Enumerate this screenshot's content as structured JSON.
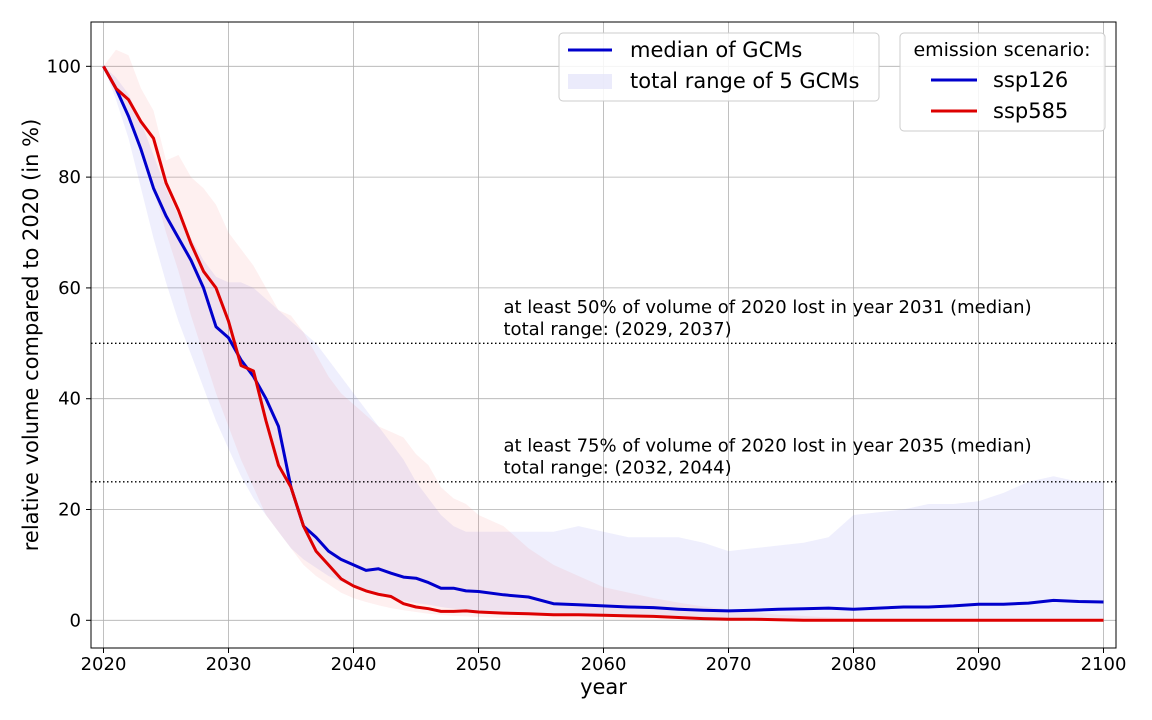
{
  "chart_data": {
    "type": "line",
    "xlabel": "year",
    "ylabel": "relative volume compared to 2020 (in %)",
    "xlim": [
      2019,
      2101
    ],
    "ylim": [
      -5,
      108
    ],
    "xticks": [
      2020,
      2030,
      2040,
      2050,
      2060,
      2070,
      2080,
      2090,
      2100
    ],
    "yticks": [
      0,
      20,
      40,
      60,
      80,
      100
    ],
    "grid": true,
    "legend_left": {
      "placement": "top-center",
      "entries": [
        {
          "label": "median of GCMs",
          "kind": "line",
          "color": "#0000cc"
        },
        {
          "label": "total range of 5 GCMs",
          "kind": "band",
          "color": "#e6e6fa"
        }
      ]
    },
    "legend_right": {
      "placement": "top-right",
      "title": "emission scenario:",
      "entries": [
        {
          "label": "ssp126",
          "color": "#0000cc"
        },
        {
          "label": "ssp585",
          "color": "#dd0000"
        }
      ]
    },
    "hlines": [
      {
        "y": 50,
        "style": "dotted"
      },
      {
        "y": 25,
        "style": "dotted"
      }
    ],
    "annotations": [
      {
        "x": 2052,
        "y": 55.5,
        "text": "at least 50% of volume of 2020 lost in year 2031 (median)"
      },
      {
        "x": 2052,
        "y": 51.5,
        "text": "total range: (2029, 2037)"
      },
      {
        "x": 2052,
        "y": 30.5,
        "text": "at least 75% of volume of 2020 lost in year 2035 (median)"
      },
      {
        "x": 2052,
        "y": 26.5,
        "text": "total range: (2032, 2044)"
      }
    ],
    "series": [
      {
        "name": "ssp126",
        "color": "#0000cc",
        "x": [
          2020,
          2021,
          2022,
          2023,
          2024,
          2025,
          2026,
          2027,
          2028,
          2029,
          2030,
          2031,
          2032,
          2033,
          2034,
          2035,
          2036,
          2037,
          2038,
          2039,
          2040,
          2041,
          2042,
          2043,
          2044,
          2045,
          2046,
          2047,
          2048,
          2049,
          2050,
          2052,
          2054,
          2056,
          2058,
          2060,
          2062,
          2064,
          2066,
          2068,
          2070,
          2072,
          2074,
          2076,
          2078,
          2080,
          2082,
          2084,
          2086,
          2088,
          2090,
          2092,
          2094,
          2096,
          2098,
          2100
        ],
        "median": [
          100,
          96,
          91,
          85,
          78,
          73,
          69,
          65,
          60,
          53,
          51,
          47,
          44,
          40,
          35,
          24,
          17,
          15,
          12.5,
          11,
          10,
          9,
          9.3,
          8.5,
          7.8,
          7.6,
          6.8,
          5.8,
          5.8,
          5.3,
          5.2,
          4.6,
          4.2,
          3.0,
          2.8,
          2.6,
          2.4,
          2.3,
          2.0,
          1.8,
          1.7,
          1.8,
          2.0,
          2.1,
          2.2,
          2.0,
          2.2,
          2.4,
          2.4,
          2.6,
          2.9,
          2.9,
          3.1,
          3.6,
          3.4,
          3.3
        ],
        "lower": [
          100,
          94,
          87,
          78,
          69,
          61,
          54,
          48,
          42,
          36,
          31,
          26,
          22,
          19,
          16,
          13,
          11,
          9.5,
          8,
          7,
          6,
          5.2,
          4.6,
          4,
          3.5,
          3.1,
          2.8,
          2.4,
          2.1,
          1.9,
          1.7,
          1.4,
          1.2,
          1.0,
          0.8,
          0.7,
          0.6,
          0.5,
          0.4,
          0.4,
          0.3,
          0.3,
          0.3,
          0.3,
          0.3,
          0.3,
          0.3,
          0.3,
          0.3,
          0.3,
          0.3,
          0.3,
          0.3,
          0.3,
          0.3,
          0.3
        ],
        "upper": [
          100,
          98,
          95,
          90,
          84,
          78,
          73,
          69,
          65,
          62,
          61,
          61,
          60,
          58,
          56,
          54,
          52,
          50,
          47,
          44,
          41,
          38,
          35,
          32,
          29,
          25,
          22,
          19,
          17,
          16,
          16,
          16,
          16,
          16,
          17,
          16,
          15,
          15,
          15,
          14,
          12.5,
          13,
          13.5,
          14,
          15,
          19,
          19.5,
          20,
          21,
          21,
          21.5,
          23,
          25,
          26,
          25,
          25
        ]
      },
      {
        "name": "ssp585",
        "color": "#dd0000",
        "x": [
          2020,
          2021,
          2022,
          2023,
          2024,
          2025,
          2026,
          2027,
          2028,
          2029,
          2030,
          2031,
          2032,
          2033,
          2034,
          2035,
          2036,
          2037,
          2038,
          2039,
          2040,
          2041,
          2042,
          2043,
          2044,
          2045,
          2046,
          2047,
          2048,
          2049,
          2050,
          2052,
          2054,
          2056,
          2058,
          2060,
          2062,
          2064,
          2066,
          2068,
          2070,
          2072,
          2074,
          2076,
          2078,
          2080,
          2082,
          2084,
          2086,
          2088,
          2090,
          2092,
          2094,
          2096,
          2098,
          2100
        ],
        "median": [
          100,
          96,
          94,
          90,
          87,
          79,
          74,
          68,
          63,
          60,
          54,
          46,
          45,
          36,
          28,
          24,
          17,
          12.5,
          10,
          7.5,
          6.2,
          5.3,
          4.7,
          4.3,
          3.0,
          2.4,
          2.1,
          1.6,
          1.6,
          1.7,
          1.5,
          1.3,
          1.2,
          1.0,
          1.0,
          0.9,
          0.8,
          0.7,
          0.5,
          0.3,
          0.2,
          0.2,
          0.1,
          0,
          0,
          0,
          0,
          0,
          0,
          0,
          0,
          0,
          0,
          0,
          0,
          0
        ],
        "lower": [
          100,
          95,
          91,
          85,
          78,
          70,
          63,
          55,
          48,
          41,
          35,
          29,
          24,
          19,
          16,
          13,
          10,
          8,
          6.5,
          5,
          4,
          3.3,
          2.7,
          2.2,
          1.8,
          1.5,
          1.2,
          1.0,
          0.8,
          0.7,
          0.6,
          0.4,
          0.3,
          0.2,
          0.2,
          0.1,
          0.1,
          0.1,
          0.1,
          0,
          0,
          0,
          0,
          0,
          0,
          0,
          0,
          0,
          0,
          0,
          0,
          0,
          0,
          0,
          0,
          0
        ],
        "upper": [
          100,
          103,
          102,
          96,
          92,
          83,
          84,
          80,
          78,
          75,
          70,
          67,
          64,
          60,
          56,
          55,
          52,
          48,
          44,
          41,
          39,
          37,
          35,
          34,
          33,
          30,
          28,
          24,
          22,
          21,
          19,
          17,
          13,
          10,
          8,
          6,
          5,
          4,
          3.2,
          2.5,
          2,
          1.5,
          1,
          0.8,
          0.5,
          0.3,
          0.2,
          0.2,
          0.2,
          0.2,
          0.2,
          0.2,
          0.2,
          0.2,
          0.2,
          0.2
        ]
      }
    ]
  }
}
